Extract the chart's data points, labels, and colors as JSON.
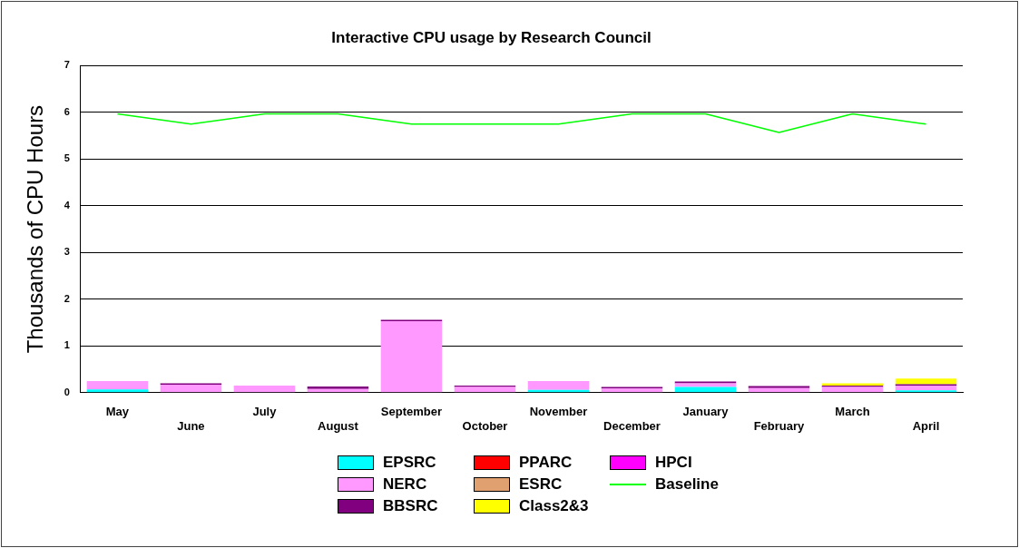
{
  "chart_data": {
    "type": "bar",
    "stacked": true,
    "title": "Interactive CPU usage by Research Council",
    "ylabel": "Thousands of CPU Hours",
    "categories": [
      "May",
      "June",
      "July",
      "August",
      "September",
      "October",
      "November",
      "December",
      "January",
      "February",
      "March",
      "April"
    ],
    "series": [
      {
        "name": "EPSRC",
        "color": "#00ffff",
        "values": [
          0.07,
          null,
          null,
          null,
          null,
          null,
          0.06,
          null,
          0.12,
          null,
          null,
          0.05
        ]
      },
      {
        "name": "PPARC",
        "color": "#ff0000",
        "values": [
          null,
          null,
          null,
          null,
          null,
          null,
          null,
          null,
          null,
          null,
          null,
          null
        ]
      },
      {
        "name": "HPCI",
        "color": "#ff00ff",
        "values": [
          null,
          null,
          null,
          null,
          null,
          null,
          null,
          null,
          null,
          null,
          null,
          null
        ]
      },
      {
        "name": "NERC",
        "color": "#ff99ff",
        "values": [
          0.18,
          0.17,
          0.15,
          0.08,
          1.53,
          0.12,
          0.19,
          0.09,
          0.08,
          0.1,
          0.12,
          0.1
        ]
      },
      {
        "name": "ESRC",
        "color": "#e0a070",
        "values": [
          null,
          null,
          null,
          null,
          null,
          null,
          null,
          null,
          null,
          null,
          null,
          null
        ]
      },
      {
        "name": "Baseline",
        "type": "line",
        "color": "#00ff00",
        "values": [
          5.97,
          5.75,
          5.97,
          5.97,
          5.75,
          5.75,
          5.75,
          5.97,
          5.97,
          5.57,
          5.97,
          5.75
        ]
      },
      {
        "name": "BBSRC",
        "color": "#800080",
        "values": [
          null,
          0.03,
          null,
          0.05,
          0.03,
          0.03,
          null,
          0.03,
          0.04,
          0.04,
          0.03,
          0.03
        ]
      },
      {
        "name": "Class2&3",
        "color": "#ffff00",
        "values": [
          null,
          null,
          null,
          null,
          null,
          null,
          null,
          null,
          null,
          null,
          0.05,
          0.12
        ]
      }
    ],
    "ylim": [
      0,
      7
    ],
    "yticks": [
      0,
      1,
      2,
      3,
      4,
      5,
      6,
      7
    ],
    "grid": "y",
    "legend": "bottom"
  }
}
